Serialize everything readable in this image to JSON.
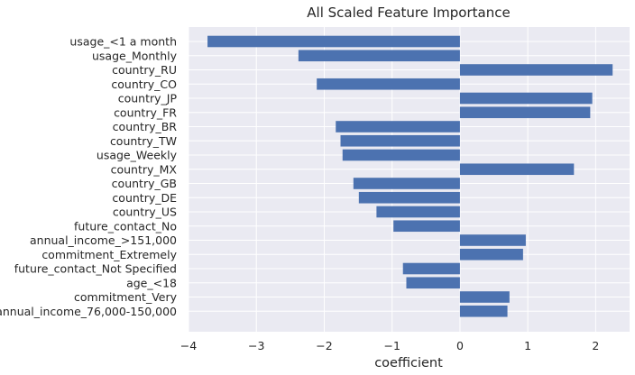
{
  "chart_data": {
    "type": "bar",
    "orientation": "horizontal",
    "title": "All Scaled Feature Importance",
    "xlabel": "coefficient",
    "ylabel": "",
    "xlim": [
      -4,
      2.5
    ],
    "xticks": [
      -4,
      -3,
      -2,
      -1,
      0,
      1,
      2
    ],
    "xtick_labels": [
      "−4",
      "−3",
      "−2",
      "−1",
      "0",
      "1",
      "2"
    ],
    "grid": true,
    "bar_color": "#4c72b0",
    "background_color": "#eaeaf2",
    "categories": [
      "usage_<1 a month",
      "usage_Monthly",
      "country_RU",
      "country_CO",
      "country_JP",
      "country_FR",
      "country_BR",
      "country_TW",
      "usage_Weekly",
      "country_MX",
      "country_GB",
      "country_DE",
      "country_US",
      "future_contact_No",
      "annual_income_>151,000",
      "commitment_Extremely",
      "future_contact_Not Specified",
      "age_<18",
      "commitment_Very",
      "annual_income_76,000-150,000"
    ],
    "values": [
      -3.72,
      -2.38,
      2.25,
      -2.11,
      1.95,
      1.92,
      -1.83,
      -1.76,
      -1.73,
      1.68,
      -1.57,
      -1.49,
      -1.23,
      -0.98,
      0.97,
      0.93,
      -0.84,
      -0.79,
      0.73,
      0.7
    ]
  }
}
